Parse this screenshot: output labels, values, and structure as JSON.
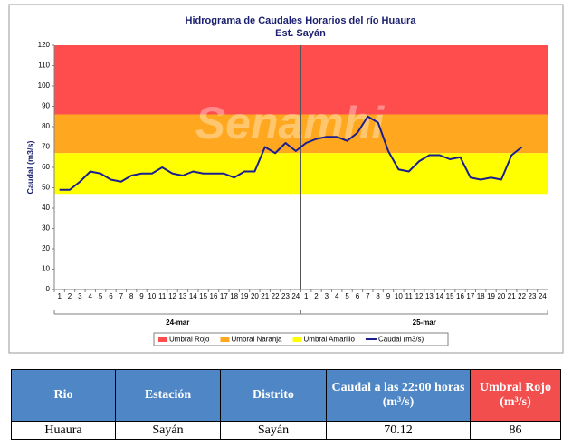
{
  "chart_data": {
    "type": "line",
    "title": "Hidrograma de Caudales Horarios del río Huaura",
    "subtitle": "Est. Sayán",
    "watermark": "Senamhi",
    "y_label": "Caudal  (m3/s)",
    "categories": [
      "1",
      "2",
      "3",
      "4",
      "5",
      "6",
      "7",
      "8",
      "9",
      "10",
      "11",
      "12",
      "13",
      "14",
      "15",
      "16",
      "17",
      "18",
      "19",
      "20",
      "21",
      "22",
      "23",
      "24",
      "1",
      "2",
      "3",
      "4",
      "5",
      "6",
      "7",
      "8",
      "9",
      "10",
      "11",
      "12",
      "13",
      "14",
      "15",
      "16",
      "17",
      "18",
      "19",
      "20",
      "21",
      "22",
      "23",
      "24"
    ],
    "groups": [
      "24-mar",
      "25-mar"
    ],
    "bands": [
      {
        "name": "Umbral Rojo",
        "color": "#ff4d4d",
        "from": 86,
        "to": 120
      },
      {
        "name": "Umbral Naranja",
        "color": "#ffa81f",
        "from": 67,
        "to": 86
      },
      {
        "name": "Umbral Amarillo",
        "color": "#ffff00",
        "from": 47,
        "to": 67
      }
    ],
    "series": [
      {
        "name": "Caudal (m3/s)",
        "color": "#1a1f8f",
        "values": [
          49,
          49,
          53,
          58,
          57,
          54,
          53,
          56,
          57,
          57,
          60,
          57,
          56,
          58,
          57,
          57,
          57,
          55,
          58,
          58,
          70,
          67,
          72,
          68,
          72,
          74,
          75,
          75,
          73,
          77,
          85,
          82,
          68,
          59,
          58,
          63,
          66,
          66,
          64,
          65,
          55,
          54,
          55,
          54,
          66,
          70,
          null,
          null
        ]
      }
    ],
    "ylim": [
      0,
      120
    ],
    "yticks": [
      0,
      10,
      20,
      30,
      40,
      50,
      60,
      70,
      80,
      90,
      100,
      110,
      120
    ]
  },
  "table": {
    "header": [
      "Rio",
      "Estación",
      "Distrito",
      "Caudal a las 22:00 horas (m³/s)",
      "Umbral Rojo (m³/s)"
    ],
    "rows": [
      [
        "Huaura",
        "Sayán",
        "Sayán",
        "70.12",
        "86"
      ]
    ]
  }
}
